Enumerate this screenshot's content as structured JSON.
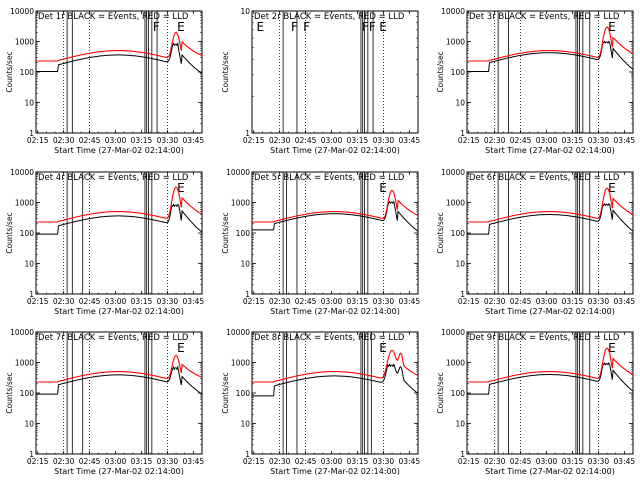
{
  "figure": {
    "shared": {
      "type": "line",
      "x_ticks": [
        "02:15",
        "02:30",
        "02:45",
        "03:00",
        "03:15",
        "03:30",
        "03:45"
      ],
      "xlabel": "Start Time (27-Mar-02 02:14:00)",
      "ylabel": "Counts/sec",
      "y_ticks": [
        "1",
        "10",
        "100",
        "1000",
        "10000"
      ],
      "y_scale": "log",
      "ylim": [
        1,
        10000
      ],
      "xlim_minutes_after_start": [
        0,
        96
      ],
      "series_colors": {
        "events": "#000000",
        "lld": "#ff0000"
      },
      "dotted_vertical_lines_at": [
        "02:30",
        "02:45",
        "03:30"
      ]
    },
    "chart_data": [
      {
        "title": "Det 1r BLACK = Events, RED = LLD",
        "row": 0,
        "col": 0,
        "solid_vertical_lines_at": [
          "02:32",
          "02:35",
          "03:17",
          "03:18",
          "03:19",
          "03:21",
          "03:24"
        ],
        "flag_letters": [
          {
            "text": "F",
            "at": "03:21"
          },
          {
            "text": "E",
            "at": "03:35"
          }
        ],
        "black_offset": 0.72,
        "black_pre_offset": 0.45,
        "red_peak": 2000,
        "black_peak": 800,
        "has_data": true
      },
      {
        "title": "Det 2r BLACK = Events, RED = LLD",
        "row": 0,
        "col": 1,
        "solid_vertical_lines_at": [
          "02:32",
          "02:40",
          "03:17",
          "03:18",
          "03:19",
          "03:21",
          "03:24"
        ],
        "flag_letters": [
          {
            "text": "E",
            "at": "02:16"
          },
          {
            "text": "F",
            "at": "02:36"
          },
          {
            "text": "F",
            "at": "02:43"
          },
          {
            "text": "F",
            "at": "03:17"
          },
          {
            "text": "F",
            "at": "03:21"
          },
          {
            "text": "E",
            "at": "03:27"
          }
        ],
        "has_data": false,
        "ylim": [
          1,
          10
        ],
        "y_ticks": [
          "1",
          "10"
        ]
      },
      {
        "title": "Det 3r BLACK = Events, RED = LLD",
        "row": 0,
        "col": 2,
        "solid_vertical_lines_at": [
          "02:32",
          "02:38",
          "03:17",
          "03:18",
          "03:19",
          "03:21",
          "03:25"
        ],
        "flag_letters": [
          {
            "text": "E",
            "at": "03:35"
          }
        ],
        "black_offset": 0.85,
        "black_pre_offset": 0.45,
        "red_peak": 3000,
        "black_peak": 950,
        "has_data": true
      },
      {
        "title": "Det 4r BLACK = Events, RED = LLD",
        "row": 1,
        "col": 0,
        "solid_vertical_lines_at": [
          "02:32",
          "02:35",
          "02:41",
          "03:17",
          "03:18",
          "03:19",
          "03:21"
        ],
        "flag_letters": [
          {
            "text": "E",
            "at": "03:35"
          }
        ],
        "black_offset": 0.72,
        "black_pre_offset": 0.4,
        "red_peak": 3200,
        "black_peak": 800,
        "has_data": true
      },
      {
        "title": "Det 5r BLACK = Events, RED = LLD",
        "row": 1,
        "col": 1,
        "solid_vertical_lines_at": [
          "02:32",
          "02:34",
          "02:40",
          "03:17",
          "03:18",
          "03:19",
          "03:21"
        ],
        "flag_letters": [
          {
            "text": "E",
            "at": "03:27"
          }
        ],
        "black_offset": 0.85,
        "black_pre_offset": 0.55,
        "red_peak": 2500,
        "black_peak": 1000,
        "has_data": true
      },
      {
        "title": "Det 6r BLACK = Events, RED = LLD",
        "row": 1,
        "col": 2,
        "solid_vertical_lines_at": [
          "02:32",
          "02:38",
          "03:17",
          "03:18",
          "03:19",
          "03:21",
          "03:25"
        ],
        "flag_letters": [
          {
            "text": "E",
            "at": "03:35"
          }
        ],
        "black_offset": 0.8,
        "black_pre_offset": 0.4,
        "red_peak": 3000,
        "black_peak": 850,
        "has_data": true
      },
      {
        "title": "Det 7r BLACK = Events, RED = LLD",
        "row": 2,
        "col": 0,
        "solid_vertical_lines_at": [
          "02:32",
          "02:35",
          "02:41",
          "03:17",
          "03:18",
          "03:19",
          "03:21"
        ],
        "flag_letters": [
          {
            "text": "E",
            "at": "03:35"
          }
        ],
        "black_offset": 0.78,
        "black_pre_offset": 0.4,
        "red_peak": 1700,
        "black_peak": 650,
        "has_data": true
      },
      {
        "title": "Det 8r BLACK = Events, RED = LLD",
        "row": 2,
        "col": 1,
        "solid_vertical_lines_at": [
          "02:32",
          "02:34",
          "02:40",
          "03:17",
          "03:18",
          "03:19",
          "03:21",
          "03:23"
        ],
        "flag_letters": [
          {
            "text": "E",
            "at": "03:27"
          }
        ],
        "black_offset": 0.72,
        "black_pre_offset": 0.35,
        "red_peak": 2500,
        "black_peak": 800,
        "has_data": true,
        "double_peak": true
      },
      {
        "title": "Det 9r BLACK = Events, RED = LLD",
        "row": 2,
        "col": 2,
        "solid_vertical_lines_at": [
          "02:32",
          "02:38",
          "03:17",
          "03:18",
          "03:19",
          "03:21",
          "03:25"
        ],
        "flag_letters": [
          {
            "text": "E",
            "at": "03:35"
          }
        ],
        "black_offset": 0.8,
        "black_pre_offset": 0.4,
        "red_peak": 3000,
        "black_peak": 900,
        "has_data": true
      }
    ]
  }
}
